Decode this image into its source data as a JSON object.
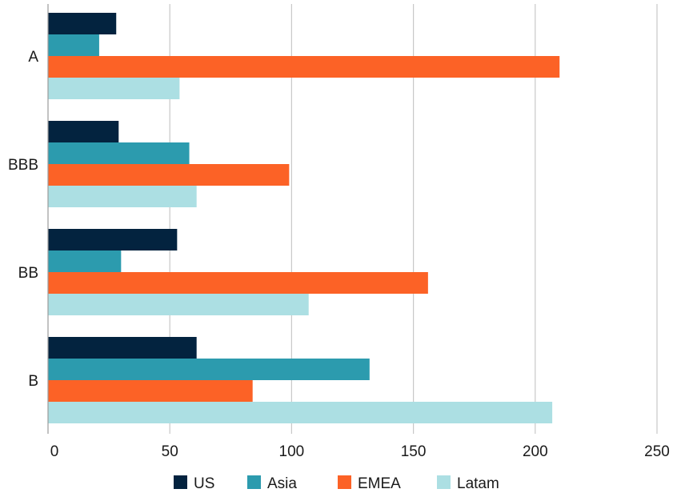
{
  "chart_data": {
    "type": "bar",
    "orientation": "horizontal",
    "categories": [
      "A",
      "BBB",
      "BB",
      "B"
    ],
    "series": [
      {
        "name": "US",
        "color": "#03233f",
        "values": [
          28,
          29,
          53,
          61
        ]
      },
      {
        "name": "Asia",
        "color": "#2c9bae",
        "values": [
          21,
          58,
          30,
          132
        ]
      },
      {
        "name": "EMEA",
        "color": "#fc6226",
        "values": [
          210,
          99,
          156,
          84
        ]
      },
      {
        "name": "Latam",
        "color": "#acdfe3",
        "values": [
          54,
          61,
          107,
          207
        ]
      }
    ],
    "xlim": [
      0,
      250
    ],
    "xticks": [
      0,
      50,
      100,
      150,
      200,
      250
    ],
    "xtick_labels": [
      "0",
      "50",
      "100",
      "150",
      "200",
      "250"
    ],
    "grid": "vertical",
    "legend_position": "bottom"
  }
}
